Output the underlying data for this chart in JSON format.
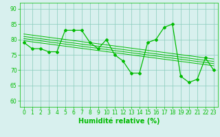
{
  "x": [
    0,
    1,
    2,
    3,
    4,
    5,
    6,
    7,
    8,
    9,
    10,
    11,
    12,
    13,
    14,
    15,
    16,
    17,
    18,
    19,
    20,
    21,
    22,
    23
  ],
  "y_main": [
    79,
    77,
    77,
    76,
    76,
    83,
    83,
    83,
    79,
    77,
    80,
    75,
    73,
    69,
    69,
    79,
    80,
    84,
    85,
    68,
    66,
    67,
    74,
    70
  ],
  "line_color": "#00bb00",
  "bg_color": "#d8f0ee",
  "grid_color": "#88ccbb",
  "xlabel": "Humidité relative (%)",
  "xlim": [
    -0.5,
    23.5
  ],
  "ylim": [
    58,
    92
  ],
  "xticks": [
    0,
    1,
    2,
    3,
    4,
    5,
    6,
    7,
    8,
    9,
    10,
    11,
    12,
    13,
    14,
    15,
    16,
    17,
    18,
    19,
    20,
    21,
    22,
    23
  ],
  "yticks": [
    60,
    65,
    70,
    75,
    80,
    85,
    90
  ],
  "tick_fontsize": 5.5,
  "label_fontsize": 7,
  "marker": "D",
  "markersize": 2.0,
  "linewidth": 0.9,
  "trend_offsets": [
    1.5,
    0.7,
    0.0,
    -0.7
  ]
}
